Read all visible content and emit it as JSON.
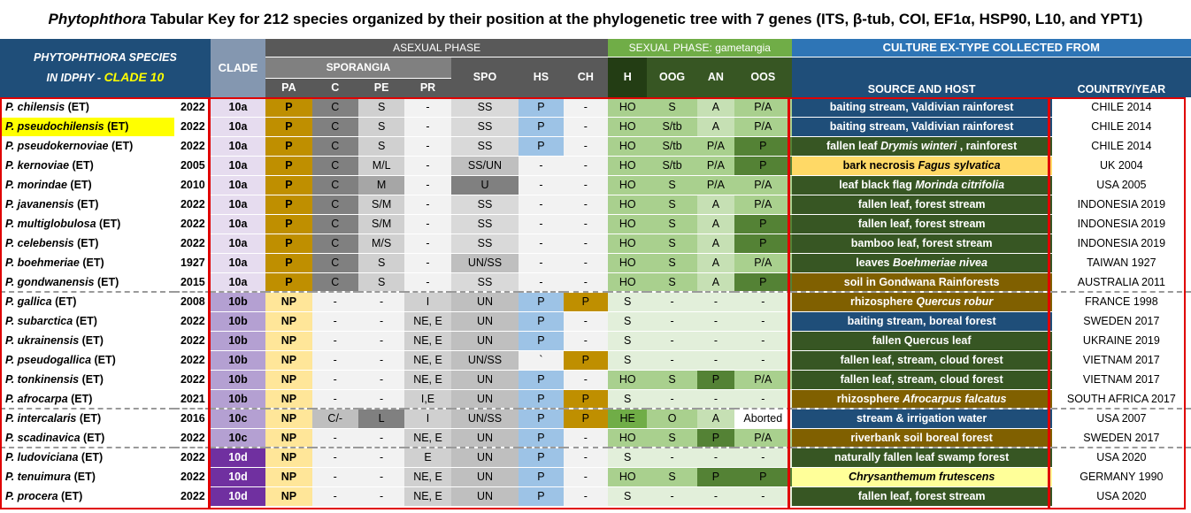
{
  "title": {
    "italic": "Phytophthora",
    "rest": " Tabular Key for 212 species organized by their position at the phylogenetic tree with 7 genes (ITS, β-tub, COI, EF1α, HSP90, L10, and YPT1)"
  },
  "header": {
    "species_line1": "PHYTOPHTHORA  SPECIES",
    "species_line2_prefix": "IN IDPHY - ",
    "species_clade": "CLADE 10",
    "clade": "CLADE",
    "asexual_phase": "ASEXUAL PHASE",
    "sexual_phase": "SEXUAL PHASE: gametangia",
    "culture": "CULTURE EX-TYPE COLLECTED FROM",
    "sporangia": "SPORANGIA",
    "pa": "PA",
    "c": "C",
    "pe": "PE",
    "pr": "PR",
    "spo": "SPO",
    "hs": "HS",
    "ch": "CH",
    "h": "H",
    "oog": "OOG",
    "an": "AN",
    "oos": "OOS",
    "source": "SOURCE AND HOST",
    "country": "COUNTRY/YEAR"
  },
  "colors": {
    "header_blue": "#1f4e79",
    "clade_header": "#8497b0",
    "grey_header": "#595959",
    "sub_grey": "#808080",
    "green_header": "#70ad47",
    "dark_green_header": "#375623",
    "culture_header": "#2e75b6",
    "red_border": "#e00000",
    "highlight_yellow": "#ffff00"
  },
  "rows": [
    {
      "name": "P. chilensis",
      "suffix": " (ET)",
      "year": "2022",
      "clade": "10a",
      "pa": "P",
      "c": "C",
      "pe": "S",
      "pr": "-",
      "spo": "SS",
      "hs": "P",
      "ch": "-",
      "h": "HO",
      "oog": "S",
      "an": "A",
      "oos": "P/A",
      "source": [
        {
          "t": "baiting stream, Valdivian rainforest"
        }
      ],
      "country": "CHILE 2014"
    },
    {
      "name": "P. pseudochilensis",
      "suffix": " (ET)",
      "year": "2022",
      "clade": "10a",
      "pa": "P",
      "c": "C",
      "pe": "S",
      "pr": "-",
      "spo": "SS",
      "hs": "P",
      "ch": "-",
      "h": "HO",
      "oog": "S/tb",
      "an": "A",
      "oos": "P/A",
      "source": [
        {
          "t": "baiting stream, Valdivian rainforest"
        }
      ],
      "country": "CHILE 2014"
    },
    {
      "name": "P. pseudokernoviae",
      "suffix": " (ET)",
      "year": "2022",
      "clade": "10a",
      "pa": "P",
      "c": "C",
      "pe": "S",
      "pr": "-",
      "spo": "SS",
      "hs": "P",
      "ch": "-",
      "h": "HO",
      "oog": "S/tb",
      "an": "P/A",
      "oos": "P",
      "source": [
        {
          "t": "fallen leaf "
        },
        {
          "t": "Drymis winteri",
          "i": true
        },
        {
          "t": " , rainforest"
        }
      ],
      "country": "CHILE 2014"
    },
    {
      "name": "P. kernoviae",
      "suffix": " (ET)",
      "year": "2005",
      "clade": "10a",
      "pa": "P",
      "c": "C",
      "pe": "M/L",
      "pr": "-",
      "spo": "SS/UN",
      "hs": "-",
      "ch": "-",
      "h": "HO",
      "oog": "S/tb",
      "an": "P/A",
      "oos": "P",
      "source": [
        {
          "t": "bark necrosis "
        },
        {
          "t": "Fagus sylvatica",
          "i": true
        }
      ],
      "country": "UK 2004"
    },
    {
      "name": "P. morindae",
      "suffix": " (ET)",
      "year": "2010",
      "clade": "10a",
      "pa": "P",
      "c": "C",
      "pe": "M",
      "pr": "-",
      "spo": "U",
      "hs": "-",
      "ch": "-",
      "h": "HO",
      "oog": "S",
      "an": "P/A",
      "oos": "P/A",
      "source": [
        {
          "t": "leaf black flag "
        },
        {
          "t": "Morinda citrifolia",
          "i": true
        }
      ],
      "country": "USA 2005"
    },
    {
      "name": "P. javanensis",
      "suffix": " (ET)",
      "year": "2022",
      "clade": "10a",
      "pa": "P",
      "c": "C",
      "pe": "S/M",
      "pr": "-",
      "spo": "SS",
      "hs": "-",
      "ch": "-",
      "h": "HO",
      "oog": "S",
      "an": "A",
      "oos": "P/A",
      "source": [
        {
          "t": "fallen leaf, forest stream"
        }
      ],
      "country": "INDONESIA 2019"
    },
    {
      "name": "P. multiglobulosa",
      "suffix": " (ET)",
      "year": "2022",
      "clade": "10a",
      "pa": "P",
      "c": "C",
      "pe": "S/M",
      "pr": "-",
      "spo": "SS",
      "hs": "-",
      "ch": "-",
      "h": "HO",
      "oog": "S",
      "an": "A",
      "oos": "P",
      "source": [
        {
          "t": "fallen leaf, forest stream"
        }
      ],
      "country": "INDONESIA 2019"
    },
    {
      "name": "P. celebensis",
      "suffix": " (ET)",
      "year": "2022",
      "clade": "10a",
      "pa": "P",
      "c": "C",
      "pe": "M/S",
      "pr": "-",
      "spo": "SS",
      "hs": "-",
      "ch": "-",
      "h": "HO",
      "oog": "S",
      "an": "A",
      "oos": "P",
      "source": [
        {
          "t": "bamboo leaf, forest stream"
        }
      ],
      "country": "INDONESIA 2019"
    },
    {
      "name": "P. boehmeriae",
      "suffix": " (ET)",
      "year": "1927",
      "clade": "10a",
      "pa": "P",
      "c": "C",
      "pe": "S",
      "pr": "-",
      "spo": "UN/SS",
      "hs": "-",
      "ch": "-",
      "h": "HO",
      "oog": "S",
      "an": "A",
      "oos": "P/A",
      "source": [
        {
          "t": "leaves "
        },
        {
          "t": "Boehmeriae nivea",
          "i": true
        }
      ],
      "country": "TAIWAN 1927"
    },
    {
      "name": "P. gondwanensis",
      "suffix": " (ET)",
      "year": "2015",
      "clade": "10a",
      "pa": "P",
      "c": "C",
      "pe": "S",
      "pr": "-",
      "spo": "SS",
      "hs": "-",
      "ch": "-",
      "h": "HO",
      "oog": "S",
      "an": "A",
      "oos": "P",
      "source": [
        {
          "t": "soil in Gondwana Rainforests"
        }
      ],
      "country": "AUSTRALIA 2011"
    },
    {
      "name": "P. gallica",
      "suffix": " (ET)",
      "year": "2008",
      "clade": "10b",
      "pa": "NP",
      "c": "-",
      "pe": "-",
      "pr": "I",
      "spo": "UN",
      "hs": "P",
      "ch": "P",
      "h": "S",
      "oog": "-",
      "an": "-",
      "oos": "-",
      "source": [
        {
          "t": "rhizosphere "
        },
        {
          "t": "Quercus robur",
          "i": true
        }
      ],
      "country": "FRANCE 1998"
    },
    {
      "name": "P. subarctica",
      "suffix": " (ET)",
      "year": "2022",
      "clade": "10b",
      "pa": "NP",
      "c": "-",
      "pe": "-",
      "pr": "NE, E",
      "spo": "UN",
      "hs": "P",
      "ch": "-",
      "h": "S",
      "oog": "-",
      "an": "-",
      "oos": "-",
      "source": [
        {
          "t": "baiting stream, boreal forest"
        }
      ],
      "country": "SWEDEN 2017"
    },
    {
      "name": "P. ukrainensis",
      "suffix": " (ET)",
      "year": "2022",
      "clade": "10b",
      "pa": "NP",
      "c": "-",
      "pe": "-",
      "pr": "NE, E",
      "spo": "UN",
      "hs": "P",
      "ch": "-",
      "h": "S",
      "oog": "-",
      "an": "-",
      "oos": "-",
      "source": [
        {
          "t": "fallen Quercus leaf"
        }
      ],
      "country": "UKRAINE 2019"
    },
    {
      "name": "P. pseudogallica",
      "suffix": " (ET)",
      "year": "2022",
      "clade": "10b",
      "pa": "NP",
      "c": "-",
      "pe": "-",
      "pr": "NE, E",
      "spo": "UN/SS",
      "hs": "`",
      "ch": "P",
      "h": "S",
      "oog": "-",
      "an": "-",
      "oos": "-",
      "source": [
        {
          "t": "fallen leaf, stream, cloud forest"
        }
      ],
      "country": "VIETNAM 2017"
    },
    {
      "name": "P. tonkinensis",
      "suffix": " (ET)",
      "year": "2022",
      "clade": "10b",
      "pa": "NP",
      "c": "-",
      "pe": "-",
      "pr": "NE, E",
      "spo": "UN",
      "hs": "P",
      "ch": "-",
      "h": "HO",
      "oog": "S",
      "an": "P",
      "oos": "P/A",
      "source": [
        {
          "t": "fallen leaf, stream, cloud forest"
        }
      ],
      "country": "VIETNAM 2017"
    },
    {
      "name": "P. afrocarpa",
      "suffix": " (ET)",
      "year": "2021",
      "clade": "10b",
      "pa": "NP",
      "c": "-",
      "pe": "-",
      "pr": "I,E",
      "spo": "UN",
      "hs": "P",
      "ch": "P",
      "h": "S",
      "oog": "-",
      "an": "-",
      "oos": "-",
      "source": [
        {
          "t": "rhizosphere "
        },
        {
          "t": "Afrocarpus falcatus",
          "i": true
        }
      ],
      "country": "SOUTH AFRICA 2017"
    },
    {
      "name": "P. intercalaris",
      "suffix": " (ET)",
      "year": "2016",
      "clade": "10c",
      "pa": "NP",
      "c": "C/-",
      "pe": "L",
      "pr": "I",
      "spo": "UN/SS",
      "hs": "P",
      "ch": "P",
      "h": "HE",
      "oog": "O",
      "an": "A",
      "oos": "Aborted",
      "source": [
        {
          "t": "stream & irrigation water"
        }
      ],
      "country": "USA 2007"
    },
    {
      "name": "P. scadinavica",
      "suffix": " (ET)",
      "year": "2022",
      "clade": "10c",
      "pa": "NP",
      "c": "-",
      "pe": "-",
      "pr": "NE, E",
      "spo": "UN",
      "hs": "P",
      "ch": "-",
      "h": "HO",
      "oog": "S",
      "an": "P",
      "oos": "P/A",
      "source": [
        {
          "t": "riverbank soil boreal forest"
        }
      ],
      "country": "SWEDEN 2017"
    },
    {
      "name": "P. ludoviciana",
      "suffix": " (ET)",
      "year": "2022",
      "clade": "10d",
      "pa": "NP",
      "c": "-",
      "pe": "-",
      "pr": "E",
      "spo": "UN",
      "hs": "P",
      "ch": "-",
      "h": "S",
      "oog": "-",
      "an": "-",
      "oos": "-",
      "source": [
        {
          "t": "naturally fallen leaf swamp forest"
        }
      ],
      "country": "USA 2020"
    },
    {
      "name": "P. tenuimura",
      "suffix": " (ET)",
      "year": "2022",
      "clade": "10d",
      "pa": "NP",
      "c": "-",
      "pe": "-",
      "pr": "NE, E",
      "spo": "UN",
      "hs": "P",
      "ch": "-",
      "h": "HO",
      "oog": "S",
      "an": "P",
      "oos": "P",
      "source": [
        {
          "t": "Chrysanthemum frutescens",
          "i": true
        }
      ],
      "country": "GERMANY 1990"
    },
    {
      "name": "P. procera",
      "suffix": " (ET)",
      "year": "2022",
      "clade": "10d",
      "pa": "NP",
      "c": "-",
      "pe": "-",
      "pr": "NE, E",
      "spo": "UN",
      "hs": "P",
      "ch": "-",
      "h": "S",
      "oog": "-",
      "an": "-",
      "oos": "-",
      "source": [
        {
          "t": "fallen leaf, forest stream"
        }
      ],
      "country": "USA 2020"
    }
  ]
}
